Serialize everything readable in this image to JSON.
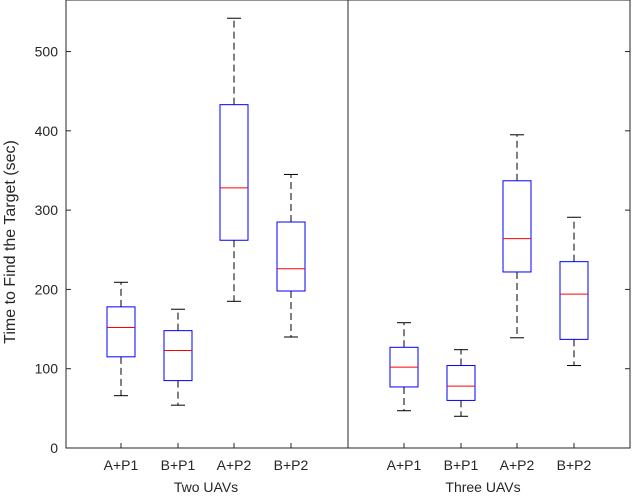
{
  "chart_data": {
    "type": "box",
    "ylabel": "Time to Find the Target (sec)",
    "ylim": [
      0,
      565
    ],
    "yticks": [
      0,
      100,
      200,
      300,
      400,
      500
    ],
    "groups": [
      {
        "name": "Two UAVs",
        "boxes": [
          {
            "label": "A+P1",
            "whisker_low": 66,
            "q1": 115,
            "median": 152,
            "q3": 178,
            "whisker_high": 209
          },
          {
            "label": "B+P1",
            "whisker_low": 54,
            "q1": 85,
            "median": 123,
            "q3": 148,
            "whisker_high": 175
          },
          {
            "label": "A+P2",
            "whisker_low": 185,
            "q1": 262,
            "median": 328,
            "q3": 433,
            "whisker_high": 542
          },
          {
            "label": "B+P2",
            "whisker_low": 140,
            "q1": 198,
            "median": 226,
            "q3": 285,
            "whisker_high": 345
          }
        ]
      },
      {
        "name": "Three UAVs",
        "boxes": [
          {
            "label": "A+P1",
            "whisker_low": 47,
            "q1": 77,
            "median": 102,
            "q3": 127,
            "whisker_high": 158
          },
          {
            "label": "B+P1",
            "whisker_low": 40,
            "q1": 60,
            "median": 78,
            "q3": 104,
            "whisker_high": 124
          },
          {
            "label": "A+P2",
            "whisker_low": 139,
            "q1": 222,
            "median": 264,
            "q3": 337,
            "whisker_high": 395
          },
          {
            "label": "B+P2",
            "whisker_low": 104,
            "q1": 137,
            "median": 194,
            "q3": 235,
            "whisker_high": 291
          }
        ]
      }
    ],
    "colors": {
      "box": "#0000ff",
      "median": "#ff0000",
      "whisker": "#000000",
      "axis": "#262626"
    }
  }
}
